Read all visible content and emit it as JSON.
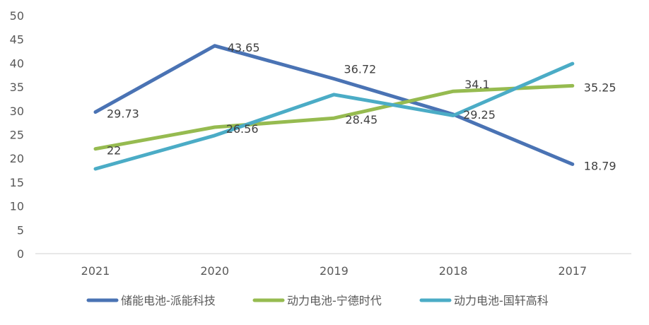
{
  "chart_data": {
    "type": "line",
    "title": "",
    "xlabel": "",
    "ylabel": "",
    "categories": [
      "2021",
      "2020",
      "2019",
      "2018",
      "2017"
    ],
    "ylim": [
      0,
      50
    ],
    "y_ticks": [
      "0",
      "5",
      "10",
      "15",
      "20",
      "25",
      "30",
      "35",
      "40",
      "45",
      "50"
    ],
    "grid": false,
    "legend_position": "bottom",
    "series": [
      {
        "name": "储能电池-派能科技",
        "color": "#4a73b4",
        "values": [
          29.73,
          43.65,
          36.72,
          29.25,
          18.79
        ],
        "labels": [
          "29.73",
          "43.65",
          "36.72",
          "29.25",
          "18.79"
        ]
      },
      {
        "name": "动力电池-宁德时代",
        "color": "#96bb50",
        "values": [
          22,
          26.56,
          28.45,
          34.1,
          35.25
        ],
        "labels": [
          "22",
          "26.56",
          "28.45",
          "34.1",
          "35.25"
        ]
      },
      {
        "name": "动力电池-国轩高科",
        "color": "#4bacc6",
        "values": [
          17.8,
          24.8,
          33.4,
          29.0,
          39.9
        ],
        "labels": []
      }
    ]
  }
}
